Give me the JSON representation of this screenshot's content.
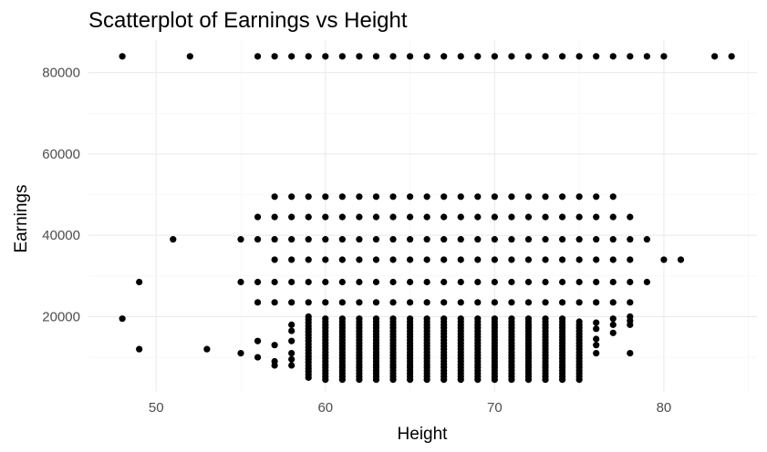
{
  "chart_data": {
    "type": "scatter",
    "title": "Scatterplot of Earnings vs Height",
    "xlabel": "Height",
    "ylabel": "Earnings",
    "xlim": [
      46,
      85.5
    ],
    "ylim": [
      1500,
      88000
    ],
    "x_ticks": [
      50,
      60,
      70,
      80
    ],
    "y_ticks": [
      20000,
      40000,
      60000,
      80000
    ],
    "grid": true,
    "legend": "none",
    "colors": {
      "point": "#000000",
      "grid": "#ebebeb",
      "tick_text": "#4d4d4d"
    },
    "points": [
      {
        "x": 48,
        "y": 84000
      },
      {
        "x": 52,
        "y": 84000
      },
      {
        "x": 56,
        "y": 84000
      },
      {
        "x": 57,
        "y": 84000
      },
      {
        "x": 58,
        "y": 84000
      },
      {
        "x": 59,
        "y": 84000
      },
      {
        "x": 60,
        "y": 84000
      },
      {
        "x": 61,
        "y": 84000
      },
      {
        "x": 62,
        "y": 84000
      },
      {
        "x": 63,
        "y": 84000
      },
      {
        "x": 64,
        "y": 84000
      },
      {
        "x": 65,
        "y": 84000
      },
      {
        "x": 66,
        "y": 84000
      },
      {
        "x": 67,
        "y": 84000
      },
      {
        "x": 68,
        "y": 84000
      },
      {
        "x": 69,
        "y": 84000
      },
      {
        "x": 70,
        "y": 84000
      },
      {
        "x": 71,
        "y": 84000
      },
      {
        "x": 72,
        "y": 84000
      },
      {
        "x": 73,
        "y": 84000
      },
      {
        "x": 74,
        "y": 84000
      },
      {
        "x": 75,
        "y": 84000
      },
      {
        "x": 76,
        "y": 84000
      },
      {
        "x": 77,
        "y": 84000
      },
      {
        "x": 78,
        "y": 84000
      },
      {
        "x": 79,
        "y": 84000
      },
      {
        "x": 80,
        "y": 84000
      },
      {
        "x": 83,
        "y": 84000
      },
      {
        "x": 84,
        "y": 84000
      },
      {
        "x": 57,
        "y": 49500
      },
      {
        "x": 58,
        "y": 49500
      },
      {
        "x": 59,
        "y": 49500
      },
      {
        "x": 60,
        "y": 49500
      },
      {
        "x": 61,
        "y": 49500
      },
      {
        "x": 62,
        "y": 49500
      },
      {
        "x": 63,
        "y": 49500
      },
      {
        "x": 64,
        "y": 49500
      },
      {
        "x": 65,
        "y": 49500
      },
      {
        "x": 66,
        "y": 49500
      },
      {
        "x": 67,
        "y": 49500
      },
      {
        "x": 68,
        "y": 49500
      },
      {
        "x": 69,
        "y": 49500
      },
      {
        "x": 70,
        "y": 49500
      },
      {
        "x": 71,
        "y": 49500
      },
      {
        "x": 72,
        "y": 49500
      },
      {
        "x": 73,
        "y": 49500
      },
      {
        "x": 74,
        "y": 49500
      },
      {
        "x": 75,
        "y": 49500
      },
      {
        "x": 76,
        "y": 49500
      },
      {
        "x": 77,
        "y": 49500
      },
      {
        "x": 56,
        "y": 44500
      },
      {
        "x": 57,
        "y": 44500
      },
      {
        "x": 58,
        "y": 44500
      },
      {
        "x": 59,
        "y": 44500
      },
      {
        "x": 60,
        "y": 44500
      },
      {
        "x": 61,
        "y": 44500
      },
      {
        "x": 62,
        "y": 44500
      },
      {
        "x": 63,
        "y": 44500
      },
      {
        "x": 64,
        "y": 44500
      },
      {
        "x": 65,
        "y": 44500
      },
      {
        "x": 66,
        "y": 44500
      },
      {
        "x": 67,
        "y": 44500
      },
      {
        "x": 68,
        "y": 44500
      },
      {
        "x": 69,
        "y": 44500
      },
      {
        "x": 70,
        "y": 44500
      },
      {
        "x": 71,
        "y": 44500
      },
      {
        "x": 72,
        "y": 44500
      },
      {
        "x": 73,
        "y": 44500
      },
      {
        "x": 74,
        "y": 44500
      },
      {
        "x": 75,
        "y": 44500
      },
      {
        "x": 76,
        "y": 44500
      },
      {
        "x": 77,
        "y": 44500
      },
      {
        "x": 78,
        "y": 44500
      },
      {
        "x": 51,
        "y": 39000
      },
      {
        "x": 55,
        "y": 39000
      },
      {
        "x": 56,
        "y": 39000
      },
      {
        "x": 57,
        "y": 39000
      },
      {
        "x": 58,
        "y": 39000
      },
      {
        "x": 59,
        "y": 39000
      },
      {
        "x": 60,
        "y": 39000
      },
      {
        "x": 61,
        "y": 39000
      },
      {
        "x": 62,
        "y": 39000
      },
      {
        "x": 63,
        "y": 39000
      },
      {
        "x": 64,
        "y": 39000
      },
      {
        "x": 65,
        "y": 39000
      },
      {
        "x": 66,
        "y": 39000
      },
      {
        "x": 67,
        "y": 39000
      },
      {
        "x": 68,
        "y": 39000
      },
      {
        "x": 69,
        "y": 39000
      },
      {
        "x": 70,
        "y": 39000
      },
      {
        "x": 71,
        "y": 39000
      },
      {
        "x": 72,
        "y": 39000
      },
      {
        "x": 73,
        "y": 39000
      },
      {
        "x": 74,
        "y": 39000
      },
      {
        "x": 75,
        "y": 39000
      },
      {
        "x": 76,
        "y": 39000
      },
      {
        "x": 77,
        "y": 39000
      },
      {
        "x": 78,
        "y": 39000
      },
      {
        "x": 79,
        "y": 39000
      },
      {
        "x": 57,
        "y": 34000
      },
      {
        "x": 58,
        "y": 34000
      },
      {
        "x": 59,
        "y": 34000
      },
      {
        "x": 60,
        "y": 34000
      },
      {
        "x": 61,
        "y": 34000
      },
      {
        "x": 62,
        "y": 34000
      },
      {
        "x": 63,
        "y": 34000
      },
      {
        "x": 64,
        "y": 34000
      },
      {
        "x": 65,
        "y": 34000
      },
      {
        "x": 66,
        "y": 34000
      },
      {
        "x": 67,
        "y": 34000
      },
      {
        "x": 68,
        "y": 34000
      },
      {
        "x": 69,
        "y": 34000
      },
      {
        "x": 70,
        "y": 34000
      },
      {
        "x": 71,
        "y": 34000
      },
      {
        "x": 72,
        "y": 34000
      },
      {
        "x": 73,
        "y": 34000
      },
      {
        "x": 74,
        "y": 34000
      },
      {
        "x": 75,
        "y": 34000
      },
      {
        "x": 76,
        "y": 34000
      },
      {
        "x": 77,
        "y": 34000
      },
      {
        "x": 78,
        "y": 34000
      },
      {
        "x": 80,
        "y": 34000
      },
      {
        "x": 81,
        "y": 34000
      },
      {
        "x": 49,
        "y": 28500
      },
      {
        "x": 55,
        "y": 28500
      },
      {
        "x": 56,
        "y": 28500
      },
      {
        "x": 57,
        "y": 28500
      },
      {
        "x": 58,
        "y": 28500
      },
      {
        "x": 59,
        "y": 28500
      },
      {
        "x": 60,
        "y": 28500
      },
      {
        "x": 61,
        "y": 28500
      },
      {
        "x": 62,
        "y": 28500
      },
      {
        "x": 63,
        "y": 28500
      },
      {
        "x": 64,
        "y": 28500
      },
      {
        "x": 65,
        "y": 28500
      },
      {
        "x": 66,
        "y": 28500
      },
      {
        "x": 67,
        "y": 28500
      },
      {
        "x": 68,
        "y": 28500
      },
      {
        "x": 69,
        "y": 28500
      },
      {
        "x": 70,
        "y": 28500
      },
      {
        "x": 71,
        "y": 28500
      },
      {
        "x": 72,
        "y": 28500
      },
      {
        "x": 73,
        "y": 28500
      },
      {
        "x": 74,
        "y": 28500
      },
      {
        "x": 75,
        "y": 28500
      },
      {
        "x": 76,
        "y": 28500
      },
      {
        "x": 77,
        "y": 28500
      },
      {
        "x": 78,
        "y": 28500
      },
      {
        "x": 79,
        "y": 28500
      },
      {
        "x": 56,
        "y": 23500
      },
      {
        "x": 57,
        "y": 23500
      },
      {
        "x": 58,
        "y": 23500
      },
      {
        "x": 59,
        "y": 23500
      },
      {
        "x": 60,
        "y": 23500
      },
      {
        "x": 61,
        "y": 23500
      },
      {
        "x": 62,
        "y": 23500
      },
      {
        "x": 63,
        "y": 23500
      },
      {
        "x": 64,
        "y": 23500
      },
      {
        "x": 65,
        "y": 23500
      },
      {
        "x": 66,
        "y": 23500
      },
      {
        "x": 67,
        "y": 23500
      },
      {
        "x": 68,
        "y": 23500
      },
      {
        "x": 69,
        "y": 23500
      },
      {
        "x": 70,
        "y": 23500
      },
      {
        "x": 71,
        "y": 23500
      },
      {
        "x": 72,
        "y": 23500
      },
      {
        "x": 73,
        "y": 23500
      },
      {
        "x": 74,
        "y": 23500
      },
      {
        "x": 75,
        "y": 23500
      },
      {
        "x": 76,
        "y": 23500
      },
      {
        "x": 77,
        "y": 23500
      },
      {
        "x": 78,
        "y": 23500
      },
      {
        "x": 48,
        "y": 19500
      },
      {
        "x": 49,
        "y": 12000
      },
      {
        "x": 53,
        "y": 12000
      },
      {
        "x": 55,
        "y": 11000
      },
      {
        "x": 56,
        "y": 14000
      },
      {
        "x": 56,
        "y": 10000
      },
      {
        "x": 57,
        "y": 13000
      },
      {
        "x": 57,
        "y": 9000
      },
      {
        "x": 57,
        "y": 8000
      },
      {
        "x": 58,
        "y": 18000
      },
      {
        "x": 58,
        "y": 16500
      },
      {
        "x": 58,
        "y": 14000
      },
      {
        "x": 58,
        "y": 11000
      },
      {
        "x": 58,
        "y": 9500
      },
      {
        "x": 58,
        "y": 8000
      },
      {
        "x": 76,
        "y": 18500
      },
      {
        "x": 76,
        "y": 17000
      },
      {
        "x": 76,
        "y": 14500
      },
      {
        "x": 76,
        "y": 13000
      },
      {
        "x": 76,
        "y": 11000
      },
      {
        "x": 77,
        "y": 19500
      },
      {
        "x": 77,
        "y": 18000
      },
      {
        "x": 77,
        "y": 16000
      },
      {
        "x": 78,
        "y": 20000
      },
      {
        "x": 78,
        "y": 19000
      },
      {
        "x": 78,
        "y": 18000
      },
      {
        "x": 78,
        "y": 11000
      }
    ],
    "dense_columns": [
      {
        "x": 59,
        "y_min": 5000,
        "y_max": 20000,
        "step": 750
      },
      {
        "x": 60,
        "y_min": 4500,
        "y_max": 20000,
        "step": 750
      },
      {
        "x": 61,
        "y_min": 4500,
        "y_max": 20000,
        "step": 750
      },
      {
        "x": 62,
        "y_min": 4500,
        "y_max": 20000,
        "step": 750
      },
      {
        "x": 63,
        "y_min": 4500,
        "y_max": 20000,
        "step": 750
      },
      {
        "x": 64,
        "y_min": 4500,
        "y_max": 20000,
        "step": 750
      },
      {
        "x": 65,
        "y_min": 4500,
        "y_max": 20000,
        "step": 750
      },
      {
        "x": 66,
        "y_min": 4500,
        "y_max": 20000,
        "step": 750
      },
      {
        "x": 67,
        "y_min": 4500,
        "y_max": 20000,
        "step": 750
      },
      {
        "x": 68,
        "y_min": 4500,
        "y_max": 20000,
        "step": 750
      },
      {
        "x": 69,
        "y_min": 4500,
        "y_max": 20000,
        "step": 750
      },
      {
        "x": 70,
        "y_min": 4500,
        "y_max": 20000,
        "step": 750
      },
      {
        "x": 71,
        "y_min": 4500,
        "y_max": 20000,
        "step": 750
      },
      {
        "x": 72,
        "y_min": 4500,
        "y_max": 20000,
        "step": 750
      },
      {
        "x": 73,
        "y_min": 4500,
        "y_max": 20000,
        "step": 750
      },
      {
        "x": 74,
        "y_min": 4500,
        "y_max": 20000,
        "step": 750
      },
      {
        "x": 75,
        "y_min": 4500,
        "y_max": 19000,
        "step": 750
      }
    ]
  }
}
